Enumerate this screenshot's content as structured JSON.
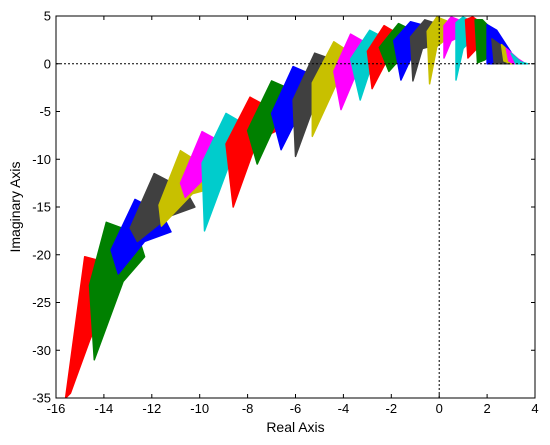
{
  "chart_data": {
    "type": "scatter",
    "title": "",
    "xlabel": "Real Axis",
    "ylabel": "Imaginary Axis",
    "xlim": [
      -16,
      4
    ],
    "ylim": [
      -35,
      5
    ],
    "x_ticks": [
      -16,
      -14,
      -12,
      -10,
      -8,
      -6,
      -4,
      -2,
      0,
      2,
      4
    ],
    "y_ticks": [
      5,
      0,
      -5,
      -10,
      -15,
      -20,
      -25,
      -30,
      -35
    ],
    "x_tick_labels": [
      "-16",
      "-14",
      "-12",
      "-10",
      "-8",
      "-6",
      "-4",
      "-2",
      "0",
      "2",
      "4"
    ],
    "y_tick_labels": [
      "5",
      "0",
      "-5",
      "-10",
      "-15",
      "-20",
      "-25",
      "-30",
      "-35"
    ],
    "grid": false,
    "reference_lines": [
      {
        "orientation": "horizontal",
        "value": 0,
        "style": "dotted"
      },
      {
        "orientation": "vertical",
        "value": 0,
        "style": "dotted"
      }
    ],
    "series": [
      {
        "color": "#ff0000",
        "polygon": [
          [
            -15.6,
            -35
          ],
          [
            -14.8,
            -20.2
          ],
          [
            -13.6,
            -21.0
          ],
          [
            -13.6,
            -23.0
          ],
          [
            -14.6,
            -29.0
          ],
          [
            -15.4,
            -34.5
          ]
        ]
      },
      {
        "color": "#008000",
        "polygon": [
          [
            -14.6,
            -23.2
          ],
          [
            -13.9,
            -16.6
          ],
          [
            -12.6,
            -17.8
          ],
          [
            -12.3,
            -20.2
          ],
          [
            -13.2,
            -22.8
          ],
          [
            -14.4,
            -31.0
          ]
        ]
      },
      {
        "color": "#0000ff",
        "polygon": [
          [
            -13.7,
            -19.5
          ],
          [
            -12.7,
            -14.2
          ],
          [
            -11.6,
            -15.6
          ],
          [
            -11.2,
            -17.6
          ],
          [
            -12.3,
            -18.6
          ],
          [
            -13.4,
            -22.0
          ]
        ]
      },
      {
        "color": "#404040",
        "polygon": [
          [
            -12.9,
            -17.2
          ],
          [
            -11.9,
            -11.5
          ],
          [
            -10.6,
            -13.2
          ],
          [
            -10.2,
            -15.0
          ],
          [
            -11.3,
            -16.0
          ],
          [
            -12.6,
            -18.6
          ]
        ]
      },
      {
        "color": "#c8c000",
        "polygon": [
          [
            -11.7,
            -14.8
          ],
          [
            -10.8,
            -9.1
          ],
          [
            -9.6,
            -11.0
          ],
          [
            -9.4,
            -13.0
          ],
          [
            -10.3,
            -13.6
          ],
          [
            -11.6,
            -17.0
          ]
        ]
      },
      {
        "color": "#ff00ff",
        "polygon": [
          [
            -10.8,
            -12.5
          ],
          [
            -9.9,
            -7.1
          ],
          [
            -8.8,
            -8.6
          ],
          [
            -8.7,
            -10.5
          ],
          [
            -9.4,
            -11.0
          ],
          [
            -10.6,
            -14.0
          ]
        ]
      },
      {
        "color": "#00cccc",
        "polygon": [
          [
            -9.9,
            -10.4
          ],
          [
            -8.9,
            -5.2
          ],
          [
            -7.8,
            -6.8
          ],
          [
            -7.6,
            -8.6
          ],
          [
            -8.6,
            -9.4
          ],
          [
            -9.8,
            -17.5
          ]
        ]
      },
      {
        "color": "#ff0000",
        "polygon": [
          [
            -8.9,
            -8.4
          ],
          [
            -7.9,
            -3.5
          ],
          [
            -6.8,
            -5.0
          ],
          [
            -6.6,
            -6.8
          ],
          [
            -7.6,
            -8.0
          ],
          [
            -8.6,
            -15.0
          ]
        ]
      },
      {
        "color": "#008000",
        "polygon": [
          [
            -8.0,
            -7.0
          ],
          [
            -7.0,
            -1.8
          ],
          [
            -5.9,
            -3.0
          ],
          [
            -5.7,
            -4.8
          ],
          [
            -6.7,
            -5.6
          ],
          [
            -7.6,
            -10.5
          ]
        ]
      },
      {
        "color": "#0000ff",
        "polygon": [
          [
            -7.0,
            -5.2
          ],
          [
            -6.1,
            -0.3
          ],
          [
            -5.0,
            -1.5
          ],
          [
            -4.9,
            -3.3
          ],
          [
            -5.6,
            -4.0
          ],
          [
            -6.6,
            -9.0
          ]
        ]
      },
      {
        "color": "#404040",
        "polygon": [
          [
            -6.1,
            -3.8
          ],
          [
            -5.2,
            1.1
          ],
          [
            -4.4,
            0.4
          ],
          [
            -4.1,
            -1.8
          ],
          [
            -5.0,
            -2.8
          ],
          [
            -6.0,
            -9.7
          ]
        ]
      },
      {
        "color": "#c8c000",
        "polygon": [
          [
            -5.3,
            -2.0
          ],
          [
            -4.4,
            2.3
          ],
          [
            -3.6,
            1.0
          ],
          [
            -3.4,
            -1.0
          ],
          [
            -4.2,
            -1.6
          ],
          [
            -5.3,
            -7.6
          ]
        ]
      },
      {
        "color": "#ff00ff",
        "polygon": [
          [
            -4.4,
            -0.8
          ],
          [
            -3.7,
            3.1
          ],
          [
            -3.0,
            2.1
          ],
          [
            -2.8,
            0.0
          ],
          [
            -3.4,
            -0.6
          ],
          [
            -4.1,
            -4.8
          ]
        ]
      },
      {
        "color": "#00cccc",
        "polygon": [
          [
            -3.7,
            0.5
          ],
          [
            -2.9,
            3.5
          ],
          [
            -2.2,
            2.6
          ],
          [
            -2.1,
            0.6
          ],
          [
            -2.8,
            0.0
          ],
          [
            -3.3,
            -3.8
          ]
        ]
      },
      {
        "color": "#ff0000",
        "polygon": [
          [
            -3.0,
            1.3
          ],
          [
            -2.3,
            4.0
          ],
          [
            -1.7,
            3.1
          ],
          [
            -1.6,
            1.0
          ],
          [
            -2.2,
            0.3
          ],
          [
            -2.8,
            -2.6
          ]
        ]
      },
      {
        "color": "#008000",
        "polygon": [
          [
            -2.5,
            1.7
          ],
          [
            -1.7,
            4.2
          ],
          [
            -1.2,
            3.6
          ],
          [
            -1.1,
            1.4
          ],
          [
            -1.6,
            0.6
          ],
          [
            -2.1,
            -0.8
          ]
        ]
      },
      {
        "color": "#0000ff",
        "polygon": [
          [
            -1.9,
            2.4
          ],
          [
            -1.2,
            4.4
          ],
          [
            -0.6,
            4.0
          ],
          [
            -0.5,
            1.9
          ],
          [
            -1.1,
            1.0
          ],
          [
            -1.6,
            -1.7
          ]
        ]
      },
      {
        "color": "#404040",
        "polygon": [
          [
            -1.2,
            2.8
          ],
          [
            -0.6,
            4.6
          ],
          [
            -0.1,
            4.2
          ],
          [
            -0.1,
            2.0
          ],
          [
            -0.7,
            1.6
          ],
          [
            -1.1,
            -1.8
          ]
        ]
      },
      {
        "color": "#c8c000",
        "polygon": [
          [
            -0.5,
            3.4
          ],
          [
            -0.1,
            4.9
          ],
          [
            0.3,
            4.5
          ],
          [
            0.3,
            2.6
          ],
          [
            -0.1,
            1.8
          ],
          [
            -0.4,
            -2.1
          ]
        ]
      },
      {
        "color": "#ff00ff",
        "polygon": [
          [
            0.2,
            4.0
          ],
          [
            0.5,
            4.9
          ],
          [
            0.9,
            4.5
          ],
          [
            0.9,
            2.9
          ],
          [
            0.5,
            2.4
          ],
          [
            0.2,
            0.6
          ]
        ]
      },
      {
        "color": "#00cccc",
        "polygon": [
          [
            0.7,
            4.3
          ],
          [
            1.0,
            4.9
          ],
          [
            1.3,
            4.5
          ],
          [
            1.4,
            2.6
          ],
          [
            1.0,
            1.6
          ],
          [
            0.7,
            -1.7
          ]
        ]
      },
      {
        "color": "#ff0000",
        "polygon": [
          [
            1.1,
            4.6
          ],
          [
            1.4,
            4.9
          ],
          [
            1.8,
            4.2
          ],
          [
            1.9,
            2.4
          ],
          [
            1.5,
            1.4
          ],
          [
            1.2,
            0.6
          ]
        ]
      },
      {
        "color": "#008000",
        "polygon": [
          [
            1.5,
            4.6
          ],
          [
            1.8,
            4.6
          ],
          [
            2.2,
            3.6
          ],
          [
            2.3,
            1.2
          ],
          [
            1.9,
            0.4
          ],
          [
            1.6,
            0.1
          ]
        ]
      },
      {
        "color": "#0000ff",
        "polygon": [
          [
            2.0,
            4.1
          ],
          [
            2.4,
            3.5
          ],
          [
            3.0,
            1.2
          ],
          [
            3.0,
            0.0
          ],
          [
            2.4,
            0.0
          ],
          [
            2.0,
            0.0
          ]
        ]
      },
      {
        "color": "#404040",
        "polygon": [
          [
            2.2,
            2.6
          ],
          [
            2.8,
            1.5
          ],
          [
            3.4,
            0.0
          ],
          [
            2.8,
            0.0
          ],
          [
            2.3,
            0.0
          ]
        ]
      },
      {
        "color": "#c8c000",
        "polygon": [
          [
            2.6,
            2.0
          ],
          [
            3.1,
            0.9
          ],
          [
            3.5,
            0.0
          ],
          [
            3.0,
            0.0
          ],
          [
            2.7,
            0.3
          ]
        ]
      },
      {
        "color": "#ff00ff",
        "polygon": [
          [
            2.8,
            1.6
          ],
          [
            3.3,
            0.5
          ],
          [
            3.6,
            0.0
          ],
          [
            3.1,
            0.0
          ],
          [
            2.9,
            0.3
          ]
        ]
      },
      {
        "color": "#00cccc",
        "polygon": [
          [
            3.0,
            1.1
          ],
          [
            3.4,
            0.2
          ],
          [
            3.7,
            0.0
          ],
          [
            3.2,
            0.0
          ]
        ]
      }
    ]
  }
}
